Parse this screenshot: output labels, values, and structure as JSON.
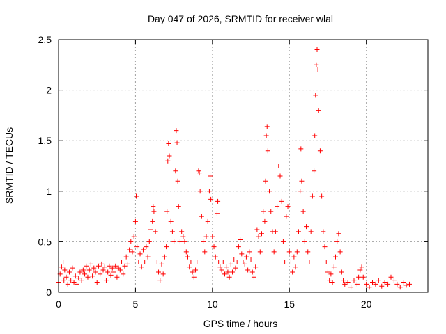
{
  "chart_data": {
    "type": "scatter",
    "title": "Day 047 of 2026, SRMTID for receiver wlal",
    "xlabel": "GPS time / hours",
    "ylabel": "SRMTID / TECUs",
    "xlim": [
      0,
      24
    ],
    "ylim": [
      0,
      2.5
    ],
    "xticks": [
      0,
      5,
      10,
      15,
      20
    ],
    "yticks": [
      0,
      0.5,
      1,
      1.5,
      2,
      2.5
    ],
    "xtick_labels": [
      "0",
      "5",
      "10",
      "15",
      "20"
    ],
    "ytick_labels": [
      "0",
      "0.5",
      "1",
      "1.5",
      "2",
      "2.5"
    ],
    "grid": true,
    "marker": "+",
    "color": "#ff0000",
    "series": [
      {
        "name": "SRMTID",
        "points": [
          [
            0.0,
            0.1
          ],
          [
            0.1,
            0.18
          ],
          [
            0.2,
            0.25
          ],
          [
            0.3,
            0.3
          ],
          [
            0.35,
            0.12
          ],
          [
            0.4,
            0.22
          ],
          [
            0.5,
            0.15
          ],
          [
            0.6,
            0.08
          ],
          [
            0.7,
            0.2
          ],
          [
            0.8,
            0.12
          ],
          [
            0.9,
            0.24
          ],
          [
            1.0,
            0.1
          ],
          [
            1.1,
            0.16
          ],
          [
            1.2,
            0.08
          ],
          [
            1.3,
            0.14
          ],
          [
            1.4,
            0.2
          ],
          [
            1.5,
            0.12
          ],
          [
            1.6,
            0.22
          ],
          [
            1.7,
            0.18
          ],
          [
            1.8,
            0.26
          ],
          [
            1.9,
            0.15
          ],
          [
            2.0,
            0.22
          ],
          [
            2.1,
            0.28
          ],
          [
            2.2,
            0.16
          ],
          [
            2.3,
            0.24
          ],
          [
            2.4,
            0.2
          ],
          [
            2.5,
            0.1
          ],
          [
            2.6,
            0.26
          ],
          [
            2.7,
            0.18
          ],
          [
            2.8,
            0.28
          ],
          [
            2.9,
            0.22
          ],
          [
            3.0,
            0.25
          ],
          [
            3.1,
            0.12
          ],
          [
            3.2,
            0.2
          ],
          [
            3.3,
            0.26
          ],
          [
            3.4,
            0.17
          ],
          [
            3.5,
            0.24
          ],
          [
            3.6,
            0.2
          ],
          [
            3.7,
            0.26
          ],
          [
            3.8,
            0.15
          ],
          [
            3.9,
            0.24
          ],
          [
            4.0,
            0.22
          ],
          [
            4.1,
            0.3
          ],
          [
            4.2,
            0.18
          ],
          [
            4.3,
            0.26
          ],
          [
            4.4,
            0.35
          ],
          [
            4.5,
            0.28
          ],
          [
            4.6,
            0.42
          ],
          [
            4.7,
            0.5
          ],
          [
            4.8,
            0.4
          ],
          [
            4.9,
            0.55
          ],
          [
            5.0,
            0.7
          ],
          [
            5.05,
            0.95
          ],
          [
            5.1,
            0.45
          ],
          [
            5.2,
            0.3
          ],
          [
            5.3,
            0.38
          ],
          [
            5.4,
            0.25
          ],
          [
            5.5,
            0.42
          ],
          [
            5.6,
            0.3
          ],
          [
            5.7,
            0.45
          ],
          [
            5.8,
            0.35
          ],
          [
            5.9,
            0.5
          ],
          [
            6.0,
            0.62
          ],
          [
            6.1,
            0.7
          ],
          [
            6.15,
            0.85
          ],
          [
            6.2,
            0.8
          ],
          [
            6.3,
            0.6
          ],
          [
            6.4,
            0.3
          ],
          [
            6.5,
            0.2
          ],
          [
            6.6,
            0.12
          ],
          [
            6.7,
            0.28
          ],
          [
            6.8,
            0.18
          ],
          [
            6.9,
            0.35
          ],
          [
            7.0,
            0.45
          ],
          [
            7.05,
            0.8
          ],
          [
            7.1,
            1.3
          ],
          [
            7.15,
            1.47
          ],
          [
            7.2,
            1.35
          ],
          [
            7.3,
            0.7
          ],
          [
            7.4,
            0.6
          ],
          [
            7.5,
            0.5
          ],
          [
            7.6,
            1.2
          ],
          [
            7.65,
            1.6
          ],
          [
            7.7,
            1.48
          ],
          [
            7.75,
            1.1
          ],
          [
            7.8,
            0.85
          ],
          [
            7.9,
            0.5
          ],
          [
            8.0,
            0.6
          ],
          [
            8.1,
            0.55
          ],
          [
            8.2,
            0.5
          ],
          [
            8.3,
            0.4
          ],
          [
            8.4,
            0.35
          ],
          [
            8.5,
            0.25
          ],
          [
            8.6,
            0.3
          ],
          [
            8.7,
            0.2
          ],
          [
            8.8,
            0.15
          ],
          [
            8.9,
            0.22
          ],
          [
            9.0,
            0.3
          ],
          [
            9.1,
            1.2
          ],
          [
            9.15,
            1.18
          ],
          [
            9.2,
            1.0
          ],
          [
            9.3,
            0.75
          ],
          [
            9.4,
            0.5
          ],
          [
            9.5,
            0.4
          ],
          [
            9.6,
            0.55
          ],
          [
            9.7,
            0.7
          ],
          [
            9.8,
            1.0
          ],
          [
            9.85,
            1.15
          ],
          [
            9.9,
            0.92
          ],
          [
            10.0,
            0.55
          ],
          [
            10.1,
            0.45
          ],
          [
            10.2,
            0.35
          ],
          [
            10.3,
            0.78
          ],
          [
            10.35,
            0.9
          ],
          [
            10.4,
            0.3
          ],
          [
            10.5,
            0.25
          ],
          [
            10.6,
            0.22
          ],
          [
            10.7,
            0.3
          ],
          [
            10.8,
            0.18
          ],
          [
            10.9,
            0.25
          ],
          [
            11.0,
            0.2
          ],
          [
            11.1,
            0.15
          ],
          [
            11.2,
            0.28
          ],
          [
            11.3,
            0.2
          ],
          [
            11.4,
            0.32
          ],
          [
            11.5,
            0.24
          ],
          [
            11.6,
            0.3
          ],
          [
            11.7,
            0.45
          ],
          [
            11.8,
            0.52
          ],
          [
            11.9,
            0.38
          ],
          [
            12.0,
            0.3
          ],
          [
            12.1,
            0.28
          ],
          [
            12.2,
            0.35
          ],
          [
            12.3,
            0.22
          ],
          [
            12.4,
            0.4
          ],
          [
            12.5,
            0.32
          ],
          [
            12.6,
            0.2
          ],
          [
            12.7,
            0.15
          ],
          [
            12.8,
            0.25
          ],
          [
            12.9,
            0.62
          ],
          [
            13.0,
            0.55
          ],
          [
            13.1,
            0.4
          ],
          [
            13.2,
            0.58
          ],
          [
            13.3,
            0.8
          ],
          [
            13.4,
            0.7
          ],
          [
            13.45,
            1.1
          ],
          [
            13.5,
            1.55
          ],
          [
            13.55,
            1.64
          ],
          [
            13.6,
            1.4
          ],
          [
            13.7,
            1.0
          ],
          [
            13.8,
            0.8
          ],
          [
            13.9,
            0.6
          ],
          [
            14.0,
            0.4
          ],
          [
            14.1,
            0.6
          ],
          [
            14.2,
            0.85
          ],
          [
            14.3,
            1.25
          ],
          [
            14.4,
            1.15
          ],
          [
            14.5,
            0.9
          ],
          [
            14.6,
            0.5
          ],
          [
            14.7,
            0.3
          ],
          [
            14.8,
            0.75
          ],
          [
            14.9,
            0.85
          ],
          [
            15.0,
            0.4
          ],
          [
            15.1,
            0.3
          ],
          [
            15.2,
            0.2
          ],
          [
            15.3,
            0.35
          ],
          [
            15.4,
            0.25
          ],
          [
            15.5,
            0.4
          ],
          [
            15.6,
            0.6
          ],
          [
            15.7,
            1.0
          ],
          [
            15.75,
            1.42
          ],
          [
            15.8,
            1.1
          ],
          [
            15.9,
            0.8
          ],
          [
            16.0,
            0.5
          ],
          [
            16.1,
            0.65
          ],
          [
            16.2,
            0.4
          ],
          [
            16.3,
            0.3
          ],
          [
            16.4,
            0.6
          ],
          [
            16.5,
            0.95
          ],
          [
            16.6,
            1.2
          ],
          [
            16.65,
            1.55
          ],
          [
            16.7,
            1.95
          ],
          [
            16.75,
            2.25
          ],
          [
            16.8,
            2.4
          ],
          [
            16.85,
            2.2
          ],
          [
            16.9,
            1.8
          ],
          [
            17.0,
            1.4
          ],
          [
            17.1,
            0.95
          ],
          [
            17.2,
            0.6
          ],
          [
            17.3,
            0.45
          ],
          [
            17.4,
            0.3
          ],
          [
            17.5,
            0.2
          ],
          [
            17.6,
            0.12
          ],
          [
            17.7,
            0.18
          ],
          [
            17.8,
            0.1
          ],
          [
            17.9,
            0.25
          ],
          [
            18.0,
            0.35
          ],
          [
            18.1,
            0.5
          ],
          [
            18.2,
            0.58
          ],
          [
            18.3,
            0.4
          ],
          [
            18.4,
            0.2
          ],
          [
            18.5,
            0.12
          ],
          [
            18.6,
            0.08
          ],
          [
            18.8,
            0.1
          ],
          [
            19.0,
            0.05
          ],
          [
            19.2,
            0.12
          ],
          [
            19.4,
            0.08
          ],
          [
            19.5,
            0.15
          ],
          [
            19.6,
            0.22
          ],
          [
            19.7,
            0.25
          ],
          [
            19.8,
            0.15
          ],
          [
            20.0,
            0.08
          ],
          [
            20.2,
            0.05
          ],
          [
            20.4,
            0.1
          ],
          [
            20.6,
            0.08
          ],
          [
            20.8,
            0.12
          ],
          [
            21.0,
            0.06
          ],
          [
            21.2,
            0.1
          ],
          [
            21.4,
            0.08
          ],
          [
            21.6,
            0.15
          ],
          [
            21.8,
            0.12
          ],
          [
            22.0,
            0.08
          ],
          [
            22.2,
            0.05
          ],
          [
            22.4,
            0.1
          ],
          [
            22.6,
            0.07
          ],
          [
            22.8,
            0.08
          ]
        ]
      }
    ]
  }
}
